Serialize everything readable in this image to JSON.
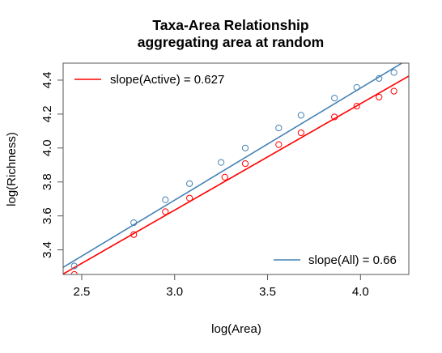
{
  "chart_data": {
    "type": "scatter",
    "title": "Taxa-Area Relationship",
    "subtitle": "aggregating area at random",
    "xlabel": "log(Area)",
    "ylabel": "log(Richness)",
    "xlim": [
      2.4,
      4.26
    ],
    "ylim": [
      3.255,
      4.5
    ],
    "x_ticks": [
      "2.5",
      "3.0",
      "3.5",
      "4.0"
    ],
    "y_ticks": [
      "3.4",
      "3.6",
      "3.8",
      "4.0",
      "4.2",
      "4.4"
    ],
    "grid": false,
    "series": [
      {
        "key": "all",
        "color": "#4682b4",
        "marker": "open-circle",
        "x": [
          2.46,
          2.78,
          2.95,
          3.08,
          3.25,
          3.38,
          3.56,
          3.68,
          3.86,
          3.98,
          4.1,
          4.18
        ],
        "y": [
          3.305,
          3.56,
          3.695,
          3.79,
          3.915,
          4.0,
          4.118,
          4.193,
          4.294,
          4.357,
          4.41,
          4.445
        ],
        "fit_line": {
          "intercept": 1.713,
          "slope": 0.66
        }
      },
      {
        "key": "active",
        "color": "#ff0000",
        "marker": "open-circle",
        "x": [
          2.46,
          2.78,
          2.95,
          3.08,
          3.27,
          3.38,
          3.56,
          3.68,
          3.86,
          3.98,
          4.1,
          4.18
        ],
        "y": [
          3.255,
          3.49,
          3.625,
          3.705,
          3.828,
          3.908,
          4.02,
          4.09,
          4.183,
          4.247,
          4.3,
          4.335
        ],
        "fit_line": {
          "intercept": 1.753,
          "slope": 0.627
        }
      }
    ],
    "legends": [
      {
        "text": "slope(Active) = 0.627",
        "color": "#ff0000",
        "placement": "top-left"
      },
      {
        "text": "slope(All) = 0.66",
        "color": "#4682b4",
        "placement": "bottom-right"
      }
    ]
  }
}
